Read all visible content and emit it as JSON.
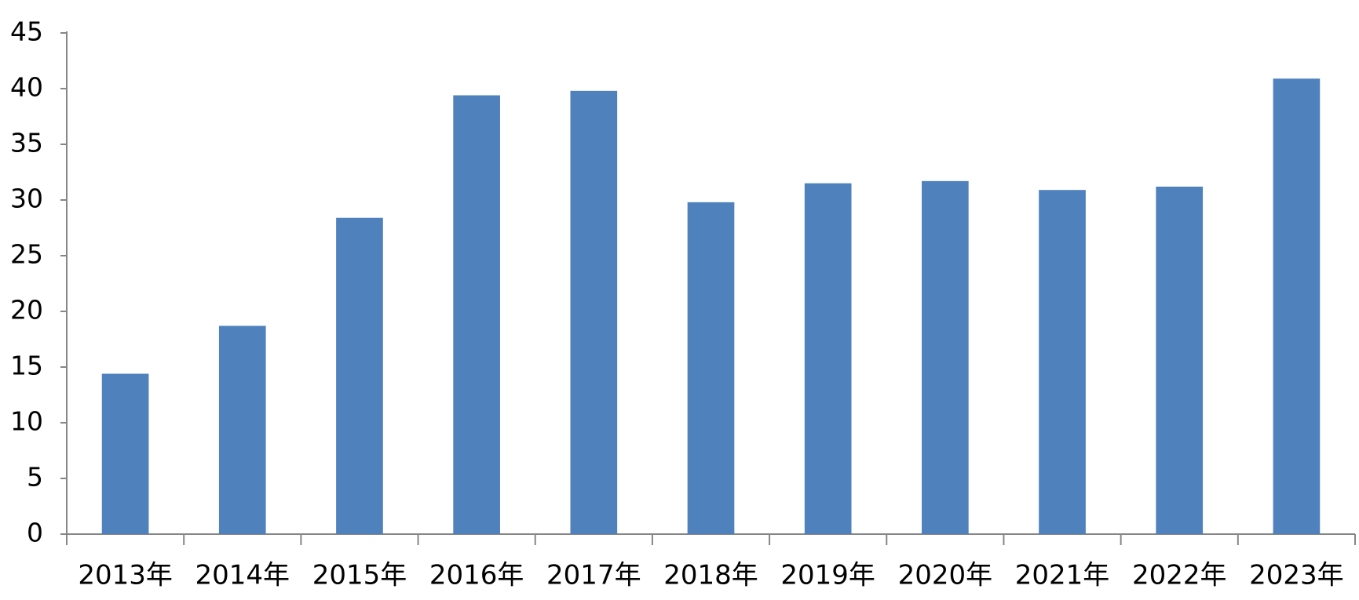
{
  "chart_data": {
    "type": "bar",
    "categories": [
      "2013年",
      "2014年",
      "2015年",
      "2016年",
      "2017年",
      "2018年",
      "2019年",
      "2020年",
      "2021年",
      "2022年",
      "2023年"
    ],
    "values": [
      14.4,
      18.7,
      28.4,
      39.4,
      39.8,
      29.8,
      31.5,
      31.7,
      30.9,
      31.2,
      40.9
    ],
    "color": "#4f81bd",
    "ylim": [
      0,
      45
    ],
    "yticks": [
      0,
      5,
      10,
      15,
      20,
      25,
      30,
      35,
      40,
      45
    ],
    "grid": false
  }
}
